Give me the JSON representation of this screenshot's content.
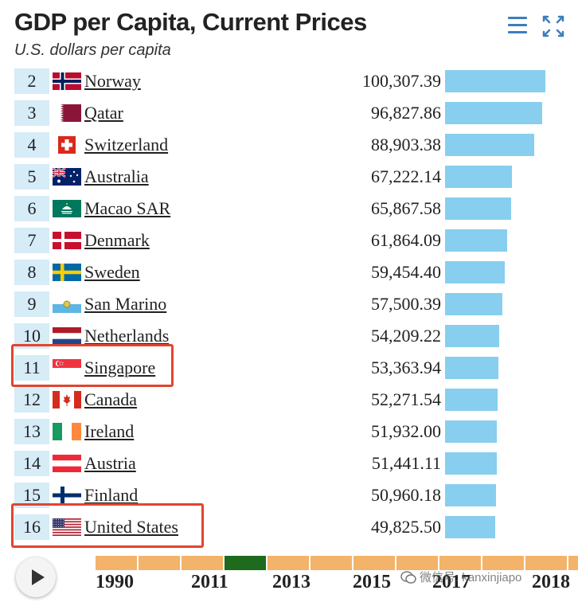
{
  "header": {
    "title": "GDP per Capita, Current Prices",
    "subtitle": "U.S. dollars per capita"
  },
  "chart_data": {
    "type": "bar",
    "title": "GDP per Capita, Current Prices",
    "subtitle": "U.S. dollars per capita",
    "unit": "U.S. dollars per capita",
    "rows": [
      {
        "rank": "2",
        "country": "Norway",
        "value": 100307.39,
        "value_label": "100,307.39",
        "flag": "norway"
      },
      {
        "rank": "3",
        "country": "Qatar",
        "value": 96827.86,
        "value_label": "96,827.86",
        "flag": "qatar"
      },
      {
        "rank": "4",
        "country": "Switzerland",
        "value": 88903.38,
        "value_label": "88,903.38",
        "flag": "switzerland"
      },
      {
        "rank": "5",
        "country": "Australia",
        "value": 67222.14,
        "value_label": "67,222.14",
        "flag": "australia"
      },
      {
        "rank": "6",
        "country": "Macao SAR",
        "value": 65867.58,
        "value_label": "65,867.58",
        "flag": "macao"
      },
      {
        "rank": "7",
        "country": "Denmark",
        "value": 61864.09,
        "value_label": "61,864.09",
        "flag": "denmark"
      },
      {
        "rank": "8",
        "country": "Sweden",
        "value": 59454.4,
        "value_label": "59,454.40",
        "flag": "sweden"
      },
      {
        "rank": "9",
        "country": "San Marino",
        "value": 57500.39,
        "value_label": "57,500.39",
        "flag": "san-marino"
      },
      {
        "rank": "10",
        "country": "Netherlands",
        "value": 54209.22,
        "value_label": "54,209.22",
        "flag": "netherlands"
      },
      {
        "rank": "11",
        "country": "Singapore",
        "value": 53363.94,
        "value_label": "53,363.94",
        "flag": "singapore"
      },
      {
        "rank": "12",
        "country": "Canada",
        "value": 52271.54,
        "value_label": "52,271.54",
        "flag": "canada"
      },
      {
        "rank": "13",
        "country": "Ireland",
        "value": 51932.0,
        "value_label": "51,932.00",
        "flag": "ireland"
      },
      {
        "rank": "14",
        "country": "Austria",
        "value": 51441.11,
        "value_label": "51,441.11",
        "flag": "austria"
      },
      {
        "rank": "15",
        "country": "Finland",
        "value": 50960.18,
        "value_label": "50,960.18",
        "flag": "finland"
      },
      {
        "rank": "16",
        "country": "United States",
        "value": 49825.5,
        "value_label": "49,825.50",
        "flag": "united-states"
      }
    ],
    "highlighted": [
      "Singapore",
      "United States"
    ],
    "bar_color": "#87ceef",
    "rank_cell_color": "#d6ecf7",
    "highlight_color": "#e0452f"
  },
  "timeline": {
    "years": [
      "1990",
      "2011",
      "2013",
      "2015",
      "2017",
      "2018"
    ],
    "selected_year": "2011",
    "track_color": "#f3b36b",
    "selected_color": "#1e6b1e"
  },
  "icons": {
    "menu": "hamburger-menu-icon",
    "expand": "expand-arrows-icon",
    "play": "play-icon",
    "wechat": "wechat-logo-icon"
  },
  "watermark": {
    "text": "微信号: kanxinjiapo"
  }
}
